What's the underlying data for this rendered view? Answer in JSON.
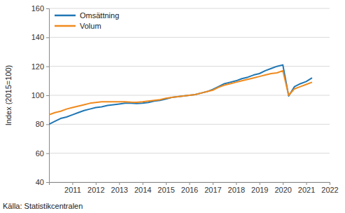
{
  "chart_data": {
    "type": "line",
    "y_label": "Index (2015=100)",
    "source": "Källa: Statistikcentralen",
    "x": [
      2010,
      2010.25,
      2010.5,
      2010.75,
      2011,
      2011.25,
      2011.5,
      2011.75,
      2012,
      2012.25,
      2012.5,
      2012.75,
      2013,
      2013.25,
      2013.5,
      2013.75,
      2014,
      2014.25,
      2014.5,
      2014.75,
      2015,
      2015.25,
      2015.5,
      2015.75,
      2016,
      2016.25,
      2016.5,
      2016.75,
      2017,
      2017.25,
      2017.5,
      2017.75,
      2018,
      2018.25,
      2018.5,
      2018.75,
      2019,
      2019.25,
      2019.5,
      2019.75,
      2020,
      2020.25,
      2020.5,
      2020.75,
      2021,
      2021.25
    ],
    "series": [
      {
        "name": "Omsättning",
        "color": "#1f77b4",
        "values": [
          80,
          82,
          84,
          85,
          86.5,
          88,
          89.5,
          90.5,
          91.5,
          92,
          93,
          93.5,
          94,
          94.5,
          94.5,
          94.3,
          94.5,
          95,
          96,
          96.5,
          97.5,
          98.5,
          99,
          99.5,
          100,
          100.5,
          101.5,
          102.5,
          104,
          106,
          108,
          109,
          110,
          111.5,
          112.5,
          114,
          115,
          117,
          118.5,
          120,
          121,
          99.5,
          106,
          108,
          109.5,
          112
        ]
      },
      {
        "name": "Volum",
        "color": "#f08a1c",
        "values": [
          86.5,
          88,
          89,
          90.5,
          91.5,
          92.5,
          93.5,
          94.5,
          95,
          95.5,
          95.5,
          95.5,
          95.5,
          95.5,
          95.3,
          95.2,
          95.5,
          96,
          96.5,
          97,
          98,
          98.5,
          99,
          99.5,
          100,
          100.5,
          101.5,
          102.5,
          103.5,
          105.5,
          107,
          108,
          109,
          110,
          111,
          112,
          113,
          114,
          115,
          115.5,
          117,
          100,
          104.5,
          106,
          107.5,
          109
        ]
      }
    ],
    "xlim": [
      2010,
      2022
    ],
    "xticks": [
      2011,
      2012,
      2013,
      2014,
      2015,
      2016,
      2017,
      2018,
      2019,
      2020,
      2021,
      2022
    ],
    "ylim": [
      40,
      160
    ],
    "yticks": [
      40,
      60,
      80,
      100,
      120,
      140,
      160
    ],
    "grid": true,
    "legend": "upper left"
  }
}
